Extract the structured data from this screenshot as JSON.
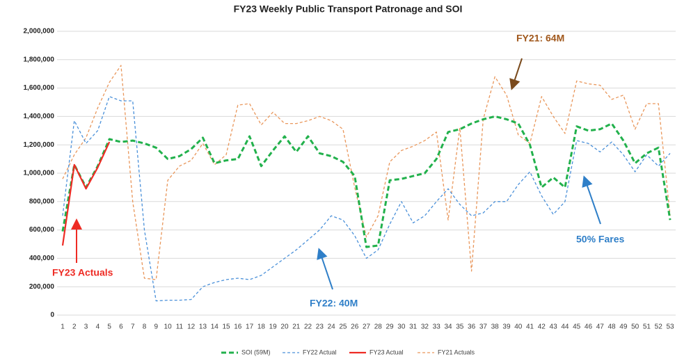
{
  "chart_data": {
    "type": "line",
    "title": "FY23 Weekly Public Transport Patronage and SOI",
    "categories": [
      "1",
      "2",
      "3",
      "4",
      "5",
      "6",
      "7",
      "8",
      "9",
      "10",
      "11",
      "12",
      "13",
      "14",
      "15",
      "16",
      "17",
      "18",
      "19",
      "20",
      "21",
      "22",
      "23",
      "24",
      "25",
      "26",
      "27",
      "28",
      "29",
      "30",
      "31",
      "32",
      "33",
      "34",
      "35",
      "36",
      "37",
      "38",
      "39",
      "40",
      "41",
      "42",
      "43",
      "44",
      "45",
      "46",
      "47",
      "48",
      "49",
      "50",
      "51",
      "52",
      "53"
    ],
    "series": [
      {
        "name": "SOI (59M)",
        "color": "#22b14c",
        "dashed": true,
        "width": 3,
        "values": [
          590000,
          1060000,
          900000,
          1050000,
          1240000,
          1220000,
          1230000,
          1210000,
          1180000,
          1100000,
          1120000,
          1170000,
          1250000,
          1070000,
          1090000,
          1100000,
          1260000,
          1050000,
          1160000,
          1260000,
          1150000,
          1260000,
          1140000,
          1120000,
          1080000,
          980000,
          480000,
          490000,
          950000,
          960000,
          980000,
          1000000,
          1100000,
          1290000,
          1310000,
          1350000,
          1380000,
          1400000,
          1380000,
          1350000,
          1200000,
          900000,
          970000,
          900000,
          1330000,
          1300000,
          1310000,
          1350000,
          1230000,
          1070000,
          1140000,
          1180000,
          670000
        ]
      },
      {
        "name": "FY22 Actual",
        "color": "#4a90d9",
        "dashed": true,
        "width": 1.3,
        "values": [
          700000,
          1370000,
          1210000,
          1300000,
          1540000,
          1510000,
          1510000,
          600000,
          100000,
          105000,
          105000,
          110000,
          200000,
          230000,
          250000,
          260000,
          250000,
          280000,
          340000,
          400000,
          460000,
          530000,
          600000,
          700000,
          670000,
          560000,
          400000,
          460000,
          640000,
          800000,
          650000,
          700000,
          800000,
          890000,
          780000,
          700000,
          720000,
          800000,
          800000,
          920000,
          1010000,
          840000,
          710000,
          800000,
          1230000,
          1210000,
          1150000,
          1220000,
          1130000,
          1010000,
          1130000,
          1050000,
          1140000
        ]
      },
      {
        "name": "FY23 Actual",
        "color": "#ee2b24",
        "dashed": false,
        "width": 2.2,
        "values": [
          490000,
          1060000,
          890000,
          1040000,
          1220000,
          null,
          null,
          null,
          null,
          null,
          null,
          null,
          null,
          null,
          null,
          null,
          null,
          null,
          null,
          null,
          null,
          null,
          null,
          null,
          null,
          null,
          null,
          null,
          null,
          null,
          null,
          null,
          null,
          null,
          null,
          null,
          null,
          null,
          null,
          null,
          null,
          null,
          null,
          null,
          null,
          null,
          null,
          null,
          null,
          null,
          null,
          null,
          null
        ]
      },
      {
        "name": "FY21 Actuals",
        "color": "#e9965a",
        "dashed": true,
        "width": 1.3,
        "values": [
          960000,
          1130000,
          1250000,
          1460000,
          1640000,
          1760000,
          800000,
          260000,
          250000,
          950000,
          1050000,
          1090000,
          1210000,
          1060000,
          1130000,
          1480000,
          1490000,
          1340000,
          1430000,
          1350000,
          1350000,
          1370000,
          1400000,
          1370000,
          1310000,
          900000,
          550000,
          700000,
          1080000,
          1160000,
          1190000,
          1230000,
          1290000,
          670000,
          1320000,
          310000,
          1380000,
          1680000,
          1550000,
          1270000,
          1210000,
          1540000,
          1400000,
          1280000,
          1650000,
          1630000,
          1620000,
          1520000,
          1550000,
          1310000,
          1490000,
          1490000,
          700000
        ]
      }
    ],
    "ylim": [
      0,
      2000000
    ],
    "yticks": [
      0,
      {
        "value": 200000,
        "label": "200,000"
      },
      {
        "value": 400000,
        "label": "400,000"
      },
      {
        "value": 600000,
        "label": "600,000"
      },
      {
        "value": 800000,
        "label": "800,000"
      },
      {
        "value": 1000000,
        "label": "1,000,000"
      },
      {
        "value": 1200000,
        "label": "1,200,000"
      },
      {
        "value": 1400000,
        "label": "1,400,000"
      },
      {
        "value": 1600000,
        "label": "1,600,000"
      },
      {
        "value": 1800000,
        "label": "1,800,000"
      },
      {
        "value": 2000000,
        "label": "2,000,000"
      }
    ],
    "grid": true,
    "legend": "bottom",
    "annotations": [
      {
        "text": "FY21: 64M",
        "color": "#a0571b"
      },
      {
        "text": "FY23 Actuals",
        "color": "#ee2b24"
      },
      {
        "text": "FY22: 40M",
        "color": "#2f7fc8"
      },
      {
        "text": "50% Fares",
        "color": "#2f7fc8"
      }
    ]
  }
}
